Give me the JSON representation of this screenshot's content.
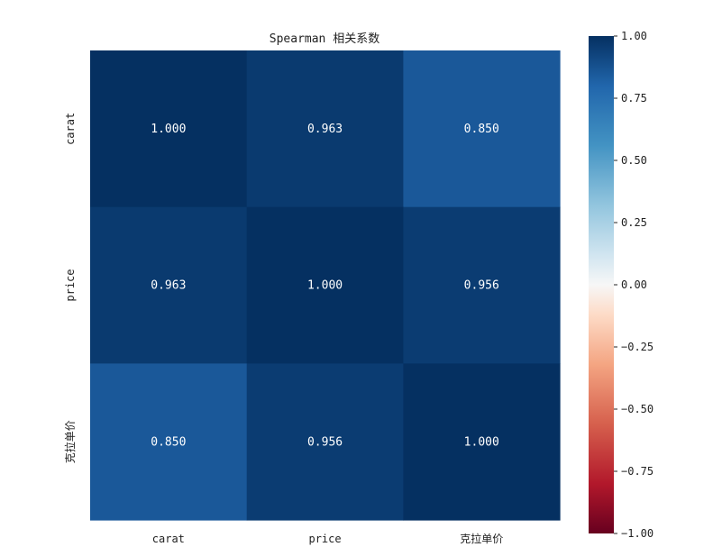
{
  "chart_data": {
    "type": "heatmap",
    "title": "Spearman 相关系数",
    "x_labels": [
      "carat",
      "price",
      "克拉单价"
    ],
    "y_labels": [
      "carat",
      "price",
      "克拉单价"
    ],
    "values": [
      [
        1.0,
        0.963,
        0.85
      ],
      [
        0.963,
        1.0,
        0.956
      ],
      [
        0.85,
        0.956,
        1.0
      ]
    ],
    "cell_labels": [
      [
        "1.000",
        "0.963",
        "0.850"
      ],
      [
        "0.963",
        "1.000",
        "0.956"
      ],
      [
        "0.850",
        "0.956",
        "1.000"
      ]
    ],
    "colormap": "RdBu",
    "vmin": -1.0,
    "vmax": 1.0,
    "colorbar_ticks": [
      1.0,
      0.75,
      0.5,
      0.25,
      0.0,
      -0.25,
      -0.5,
      -0.75,
      -1.0
    ],
    "colorbar_tick_labels": [
      "1.00",
      "0.75",
      "0.50",
      "0.25",
      "0.00",
      "−0.25",
      "−0.50",
      "−0.75",
      "−1.00"
    ]
  }
}
